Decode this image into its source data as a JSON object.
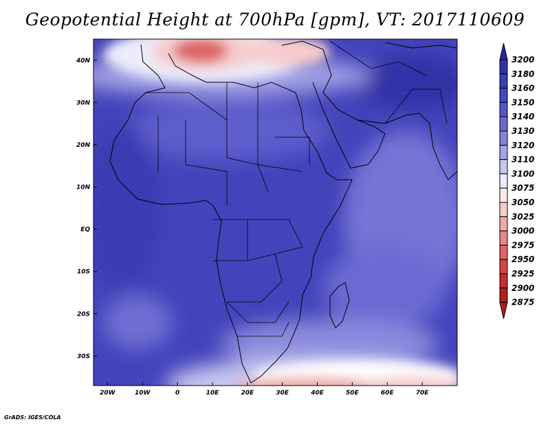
{
  "title": "Geopotential Height at 700hPa [gpm], VT: 2017110609",
  "footer": "GrADS: IGES/COLA",
  "map": {
    "lon_range": [
      -24,
      80
    ],
    "lat_range": [
      -37,
      45
    ],
    "lon_ticks": [
      {
        "value": -20,
        "label": "20W"
      },
      {
        "value": -10,
        "label": "10W"
      },
      {
        "value": 0,
        "label": "0"
      },
      {
        "value": 10,
        "label": "10E"
      },
      {
        "value": 20,
        "label": "20E"
      },
      {
        "value": 30,
        "label": "30E"
      },
      {
        "value": 40,
        "label": "40E"
      },
      {
        "value": 50,
        "label": "50E"
      },
      {
        "value": 60,
        "label": "60E"
      },
      {
        "value": 70,
        "label": "70E"
      }
    ],
    "lat_ticks": [
      {
        "value": 40,
        "label": "40N"
      },
      {
        "value": 30,
        "label": "30N"
      },
      {
        "value": 20,
        "label": "20N"
      },
      {
        "value": 10,
        "label": "10N"
      },
      {
        "value": 0,
        "label": "EQ"
      },
      {
        "value": -10,
        "label": "10S"
      },
      {
        "value": -20,
        "label": "20S"
      },
      {
        "value": -30,
        "label": "30S"
      }
    ]
  },
  "colorbar": {
    "levels": [
      "3200",
      "3180",
      "3160",
      "3150",
      "3140",
      "3130",
      "3120",
      "3110",
      "3100",
      "3075",
      "3050",
      "3025",
      "3000",
      "2975",
      "2950",
      "2925",
      "2900",
      "2875"
    ],
    "colors": [
      "#2a2a9a",
      "#3333a8",
      "#3c3cb4",
      "#4747be",
      "#5656c8",
      "#6a6ad2",
      "#8383dc",
      "#a3a3e6",
      "#c6c6f0",
      "#ececfa",
      "#fbe9e9",
      "#f6cccc",
      "#efaaaa",
      "#e68888",
      "#dd6666",
      "#d14747",
      "#c22f2f",
      "#ad2020"
    ]
  }
}
